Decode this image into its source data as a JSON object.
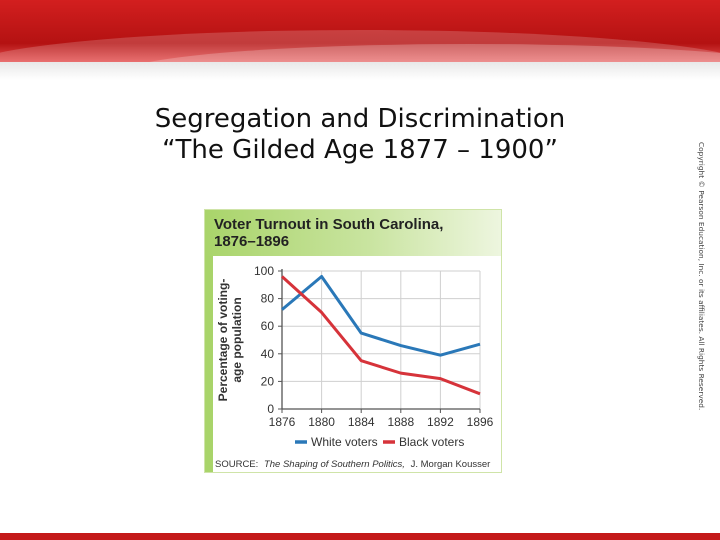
{
  "slide": {
    "title_line1": "Segregation and Discrimination",
    "title_line2": "“The Gilded Age 1877 – 1900”",
    "copyright": "Copyright © Pearson Education, Inc. or its affiliates. All Rights Reserved.",
    "theme_color": "#c41a1a"
  },
  "chart_data": {
    "type": "line",
    "title_line1": "Voter Turnout in South Carolina,",
    "title_line2": "1876–1896",
    "ylabel_line1": "Percentage of voting-",
    "ylabel_line2": "age population",
    "x": [
      1876,
      1880,
      1884,
      1888,
      1892,
      1896
    ],
    "x_tick_labels": [
      "1876",
      "1880",
      "1884",
      "1888",
      "1892",
      "1896"
    ],
    "ylim": [
      0,
      100
    ],
    "y_ticks": [
      0,
      20,
      40,
      60,
      80,
      100
    ],
    "series": [
      {
        "name": "White voters",
        "color": "#2a78b8",
        "values": [
          72,
          96,
          55,
          46,
          39,
          47
        ]
      },
      {
        "name": "Black voters",
        "color": "#d6333a",
        "values": [
          96,
          70,
          35,
          26,
          22,
          11
        ]
      }
    ],
    "legend_position": "bottom",
    "grid": true,
    "source_label": "SOURCE:",
    "source_title": "The Shaping of Southern Politics,",
    "source_author": "J. Morgan Kousser"
  }
}
